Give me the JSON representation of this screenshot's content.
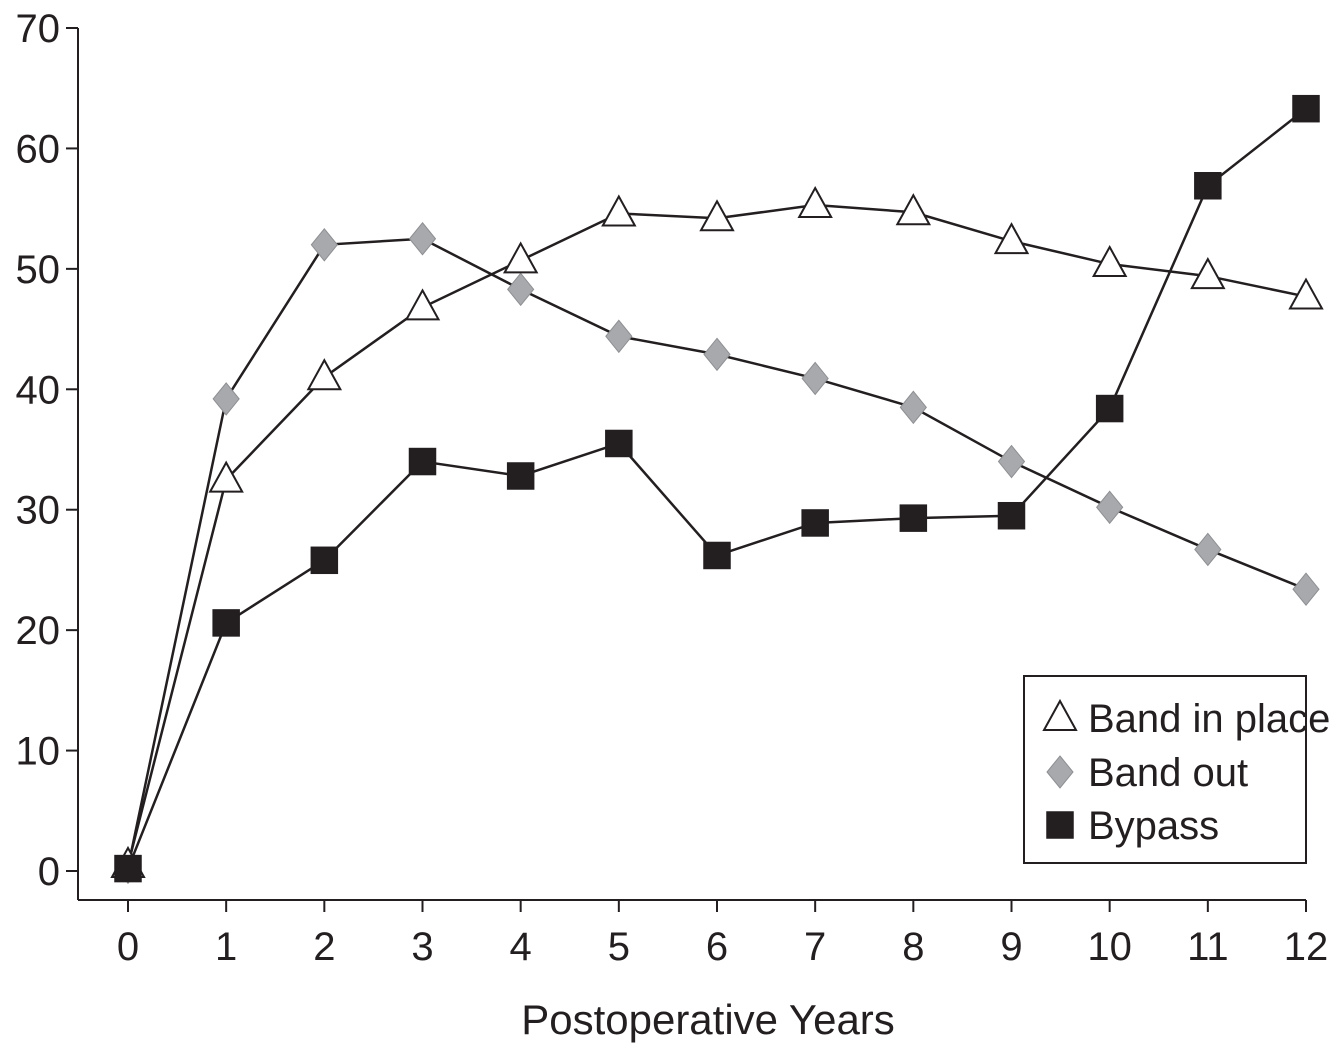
{
  "chart_data": {
    "type": "line",
    "title": "",
    "xlabel": "Postoperative Years",
    "ylabel": "",
    "x": [
      0,
      1,
      2,
      3,
      4,
      5,
      6,
      7,
      8,
      9,
      10,
      11,
      12
    ],
    "xlim": [
      0,
      12
    ],
    "ylim": [
      0,
      70
    ],
    "xticks": [
      "0",
      "1",
      "2",
      "3",
      "4",
      "5",
      "6",
      "7",
      "8",
      "9",
      "10",
      "11",
      "12"
    ],
    "yticks": [
      "0",
      "10",
      "20",
      "30",
      "40",
      "50",
      "60",
      "70"
    ],
    "grid": false,
    "legend_position": "bottom-right",
    "series": [
      {
        "name": "Band in place",
        "marker": "triangle",
        "marker_fill": "#ffffff",
        "values": [
          0.5,
          32.5,
          41.0,
          46.8,
          50.7,
          54.6,
          54.2,
          55.3,
          54.7,
          52.3,
          50.4,
          49.4,
          47.7
        ]
      },
      {
        "name": "Band out",
        "marker": "diamond",
        "marker_fill": "#a7a9ac",
        "values": [
          0.3,
          39.2,
          52.0,
          52.5,
          48.3,
          44.4,
          42.9,
          40.9,
          38.5,
          34.0,
          30.2,
          26.7,
          23.4
        ]
      },
      {
        "name": "Bypass",
        "marker": "square",
        "marker_fill": "#231f20",
        "values": [
          0.2,
          20.6,
          25.8,
          34.0,
          32.8,
          35.5,
          26.2,
          28.9,
          29.3,
          29.5,
          38.4,
          56.9,
          63.3
        ]
      }
    ],
    "colors": {
      "line": "#231f20",
      "axis": "#231f20",
      "marker_stroke": "#231f20"
    }
  }
}
